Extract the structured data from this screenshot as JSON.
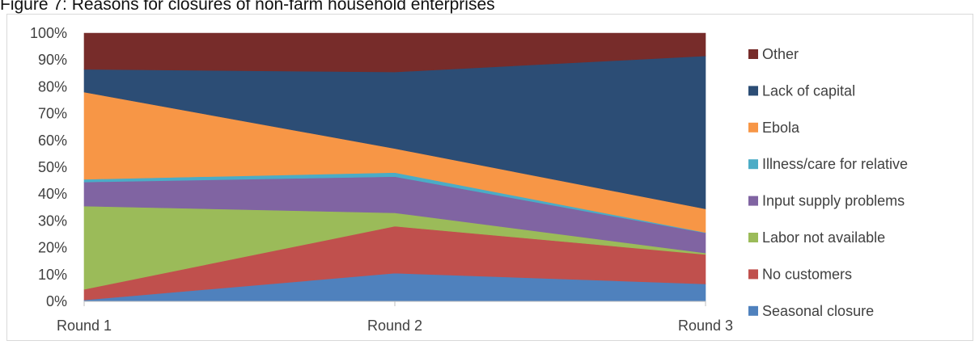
{
  "figure": {
    "title": "Figure 7: Reasons for closures of non-farm household enterprises"
  },
  "chart_data": {
    "type": "area",
    "stacked": true,
    "percent": true,
    "categories": [
      "Round 1",
      "Round 2",
      "Round 3"
    ],
    "ylim": [
      0,
      100
    ],
    "yticks": [
      "0%",
      "10%",
      "20%",
      "30%",
      "40%",
      "50%",
      "60%",
      "70%",
      "80%",
      "90%",
      "100%"
    ],
    "grid": false,
    "legend_position": "right",
    "series": [
      {
        "name": "Seasonal closure",
        "color": "#4f81bd",
        "values": [
          0.5,
          10.5,
          6.5
        ]
      },
      {
        "name": "No customers",
        "color": "#c0504d",
        "values": [
          4.0,
          17.5,
          11.0
        ]
      },
      {
        "name": "Labor not available",
        "color": "#9bbb59",
        "values": [
          31.0,
          5.0,
          0.5
        ]
      },
      {
        "name": "Input supply problems",
        "color": "#8064a2",
        "values": [
          9.0,
          13.5,
          7.5
        ]
      },
      {
        "name": "Illness/care for relative",
        "color": "#4bacc6",
        "values": [
          1.0,
          1.5,
          0.2
        ]
      },
      {
        "name": "Ebola",
        "color": "#f79646",
        "values": [
          32.5,
          9.0,
          8.8
        ]
      },
      {
        "name": "Lack of capital",
        "color": "#2c4d75",
        "values": [
          8.5,
          28.5,
          57.0
        ]
      },
      {
        "name": "Other",
        "color": "#772c2a",
        "values": [
          13.5,
          14.5,
          8.5
        ]
      }
    ]
  }
}
